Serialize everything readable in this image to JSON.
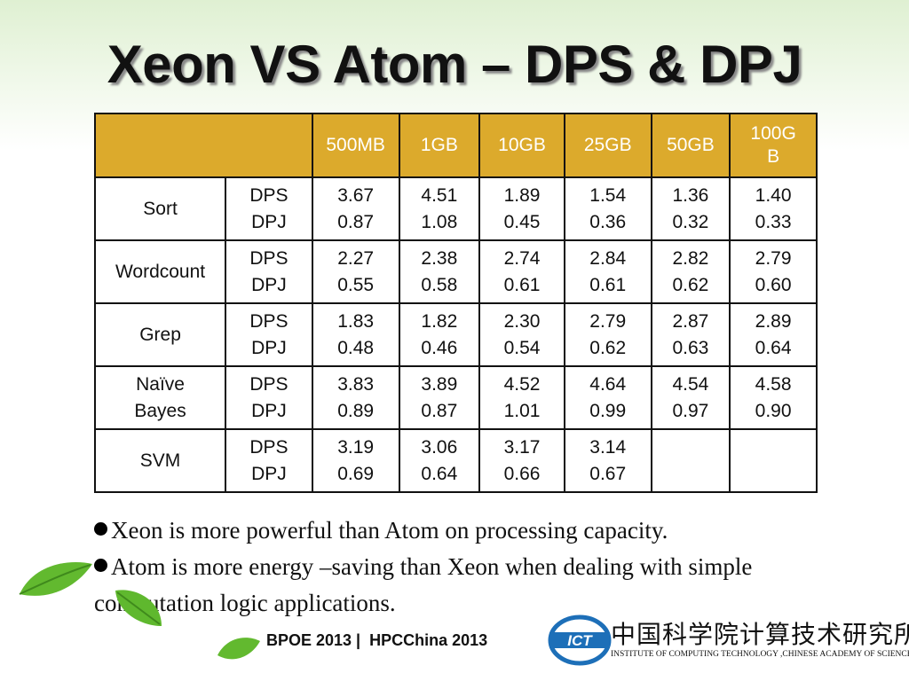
{
  "title": "Xeon VS Atom – DPS & DPJ",
  "table": {
    "columns": [
      "500MB",
      "1GB",
      "10GB",
      "25GB",
      "50GB",
      "100GB"
    ],
    "metrics": [
      "DPS",
      "DPJ"
    ],
    "rows": [
      {
        "name": "Sort",
        "dps": [
          "3.67",
          "4.51",
          "1.89",
          "1.54",
          "1.36",
          "1.40"
        ],
        "dpj": [
          "0.87",
          "1.08",
          "0.45",
          "0.36",
          "0.32",
          "0.33"
        ]
      },
      {
        "name": "Wordcount",
        "dps": [
          "2.27",
          "2.38",
          "2.74",
          "2.84",
          "2.82",
          "2.79"
        ],
        "dpj": [
          "0.55",
          "0.58",
          "0.61",
          "0.61",
          "0.62",
          "0.60"
        ]
      },
      {
        "name": "Grep",
        "dps": [
          "1.83",
          "1.82",
          "2.30",
          "2.79",
          "2.87",
          "2.89"
        ],
        "dpj": [
          "0.48",
          "0.46",
          "0.54",
          "0.62",
          "0.63",
          "0.64"
        ]
      },
      {
        "name": "Naïve Bayes",
        "dps": [
          "3.83",
          "3.89",
          "4.52",
          "4.64",
          "4.54",
          "4.58"
        ],
        "dpj": [
          "0.89",
          "0.87",
          "1.01",
          "0.99",
          "0.97",
          "0.90"
        ]
      },
      {
        "name": "SVM",
        "dps": [
          "3.19",
          "3.06",
          "3.17",
          "3.14",
          "",
          ""
        ],
        "dpj": [
          "0.69",
          "0.64",
          "0.66",
          "0.67",
          "",
          ""
        ]
      }
    ]
  },
  "bullets": [
    "Xeon is more powerful than Atom on processing capacity.",
    "Atom is more energy –saving than Xeon when dealing with simple computation logic applications."
  ],
  "footer": {
    "conference": "BPOE 2013 |  HPCChina 2013",
    "logo_text": "ICT",
    "institute_cn": "中国科学院计算技术研究所",
    "institute_en": "INSTITUTE OF  COMPUTING TECHNOLOGY ,CHINESE ACADEMY OF SCIENCES"
  },
  "colors": {
    "header_fill": "#dcaa2c",
    "header_text": "#ffffff",
    "leaf_green": "#5fb82e",
    "logo_blue": "#1d6fb8"
  },
  "icons": [
    "leaf-icon",
    "bullet-dot-icon",
    "ict-logo-icon"
  ]
}
